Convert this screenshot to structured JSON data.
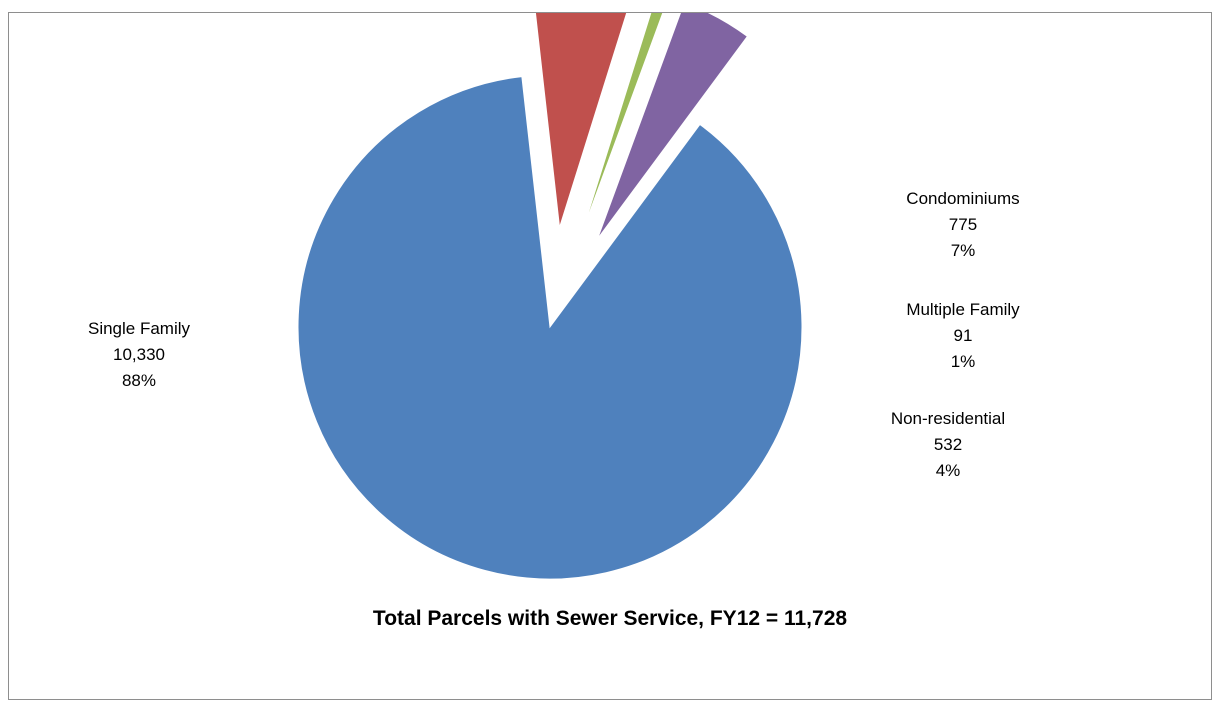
{
  "chart_data": {
    "type": "pie",
    "title": "Total Parcels with Sewer Service, FY12 = 11,728",
    "legend": "none",
    "slices": [
      {
        "name": "Single Family",
        "value": 10330,
        "value_label": "10,330",
        "percent_label": "88%",
        "color": "#4f81bd",
        "exploded": false
      },
      {
        "name": "Condominiums",
        "value": 775,
        "value_label": "775",
        "percent_label": "7%",
        "color": "#c0504d",
        "exploded": true
      },
      {
        "name": "Multiple Family",
        "value": 91,
        "value_label": "91",
        "percent_label": "1%",
        "color": "#9bbb59",
        "exploded": true
      },
      {
        "name": "Non-residential",
        "value": 532,
        "value_label": "532",
        "percent_label": "4%",
        "color": "#8064a2",
        "exploded": true
      }
    ]
  }
}
